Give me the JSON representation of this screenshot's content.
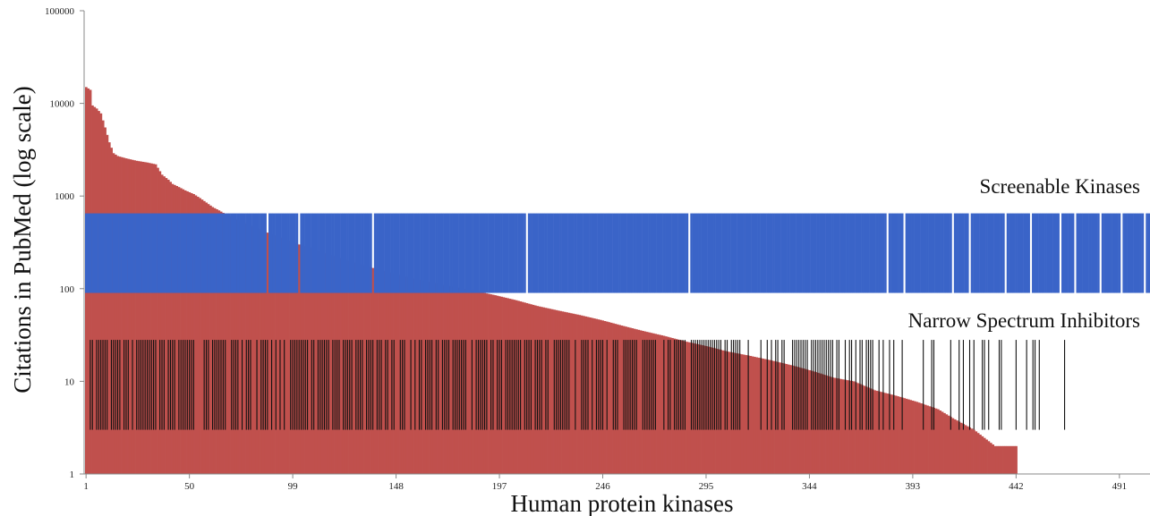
{
  "chart_data": {
    "type": "bar",
    "xlabel": "Human protein kinases",
    "ylabel": "Citations in PubMed (log scale)",
    "y_scale": "log",
    "ylim": [
      1,
      100000
    ],
    "xlim": [
      1,
      501
    ],
    "y_ticks": [
      1,
      10,
      100,
      1000,
      10000,
      100000
    ],
    "y_tick_labels": [
      "1",
      "10",
      "100",
      "1000",
      "10000",
      "100000"
    ],
    "x_ticks": [
      1,
      50,
      99,
      148,
      197,
      246,
      295,
      344,
      393,
      442,
      491
    ],
    "grid": false,
    "legend": "none",
    "colors": {
      "citations": "#c0504d",
      "screenable": "#3a64c8",
      "narrow": "#111111",
      "axis": "#888888"
    },
    "series": [
      {
        "kind": "bars",
        "note_rank_ordered": true,
        "citation_curve": [
          [
            1,
            15000
          ],
          [
            3,
            14000
          ],
          [
            4,
            9500
          ],
          [
            6,
            8800
          ],
          [
            8,
            7800
          ],
          [
            10,
            5500
          ],
          [
            12,
            3800
          ],
          [
            14,
            2900
          ],
          [
            16,
            2700
          ],
          [
            20,
            2550
          ],
          [
            25,
            2400
          ],
          [
            30,
            2300
          ],
          [
            34,
            2200
          ],
          [
            37,
            1700
          ],
          [
            40,
            1500
          ],
          [
            42,
            1350
          ],
          [
            45,
            1250
          ],
          [
            48,
            1150
          ],
          [
            52,
            1050
          ],
          [
            55,
            950
          ],
          [
            58,
            850
          ],
          [
            61,
            760
          ],
          [
            64,
            700
          ],
          [
            68,
            620
          ],
          [
            75,
            520
          ],
          [
            85,
            420
          ],
          [
            95,
            340
          ],
          [
            110,
            260
          ],
          [
            125,
            200
          ],
          [
            140,
            160
          ],
          [
            155,
            130
          ],
          [
            170,
            110
          ],
          [
            185,
            95
          ],
          [
            195,
            85
          ],
          [
            205,
            75
          ],
          [
            215,
            65
          ],
          [
            225,
            58
          ],
          [
            235,
            52
          ],
          [
            245,
            46
          ],
          [
            255,
            40
          ],
          [
            265,
            35
          ],
          [
            275,
            31
          ],
          [
            285,
            27
          ],
          [
            295,
            24
          ],
          [
            305,
            21
          ],
          [
            315,
            19
          ],
          [
            325,
            17
          ],
          [
            335,
            15
          ],
          [
            345,
            13
          ],
          [
            355,
            11
          ],
          [
            365,
            10
          ],
          [
            375,
            8
          ],
          [
            385,
            7
          ],
          [
            395,
            6
          ],
          [
            405,
            5
          ],
          [
            412,
            4
          ],
          [
            422,
            3
          ],
          [
            432,
            2
          ],
          [
            442,
            2
          ],
          [
            443,
            0
          ]
        ]
      },
      {
        "name": "Screenable Kinases",
        "kind": "band",
        "y_range": [
          90,
          650
        ],
        "gaps": [
          87,
          102,
          137,
          210,
          287,
          381,
          389,
          412,
          420,
          437,
          449,
          463,
          470,
          482,
          492,
          503
        ]
      },
      {
        "name": "Narrow Spectrum Inhibitors",
        "kind": "band",
        "y_range": [
          3,
          28
        ],
        "present_segments": [
          [
            1,
            228,
            0.72
          ],
          [
            229,
            315,
            0.62
          ],
          [
            316,
            376,
            0.55
          ],
          [
            377,
            420,
            0.32
          ],
          [
            421,
            470,
            0.22
          ],
          [
            471,
            505,
            0.12
          ]
        ]
      }
    ]
  }
}
